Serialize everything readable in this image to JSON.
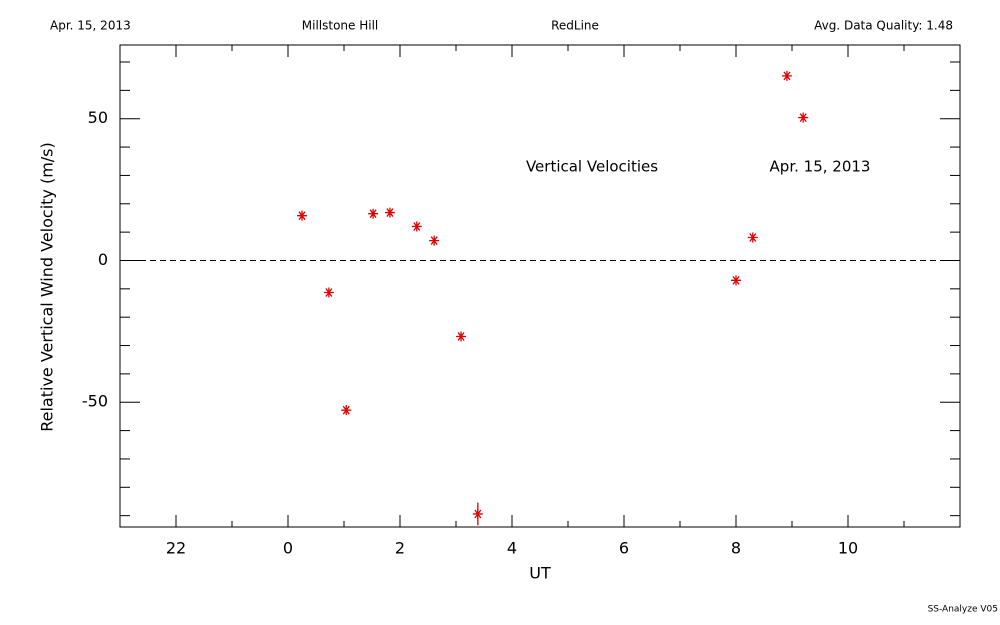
{
  "header": [
    "Apr. 15, 2013",
    "Millstone Hill",
    "RedLine",
    "Avg. Data Quality: 1.48"
  ],
  "footer": "SS-Analyze V05",
  "chart_data": {
    "type": "scatter",
    "xlabel": "UT",
    "ylabel": "Relative Vertical Wind Velocity (m/s)",
    "annotations": [
      "Vertical Velocities",
      "Apr. 15, 2013"
    ],
    "x": [
      0.25,
      0.73,
      1.04,
      1.52,
      1.82,
      2.3,
      2.61,
      3.09,
      3.39,
      8.0,
      8.3,
      8.91,
      9.2
    ],
    "series": [
      {
        "color": "#e00000",
        "values": [
          15.8,
          -11.3,
          -52.8,
          16.5,
          16.9,
          12,
          7,
          -26.8,
          -89.4,
          -7,
          8.1,
          65.1,
          50.4
        ],
        "errors": [
          null,
          null,
          null,
          null,
          null,
          null,
          null,
          null,
          4,
          null,
          null,
          null,
          null
        ]
      }
    ],
    "xlim": [
      -3,
      12
    ],
    "ylim": [
      -94,
      76
    ],
    "xticks": [
      {
        "value": -2,
        "label": "22"
      },
      0,
      2,
      4,
      6,
      8,
      10
    ],
    "yticks": [
      -50,
      0,
      50
    ],
    "x_minor_ticks": [
      -3,
      -1,
      1,
      3,
      5,
      7,
      9,
      11
    ],
    "y_minor_ticks": [
      -90,
      -80,
      -70,
      -60,
      -40,
      -30,
      -20,
      -10,
      10,
      20,
      30,
      40,
      60,
      70
    ],
    "hline": 0
  }
}
